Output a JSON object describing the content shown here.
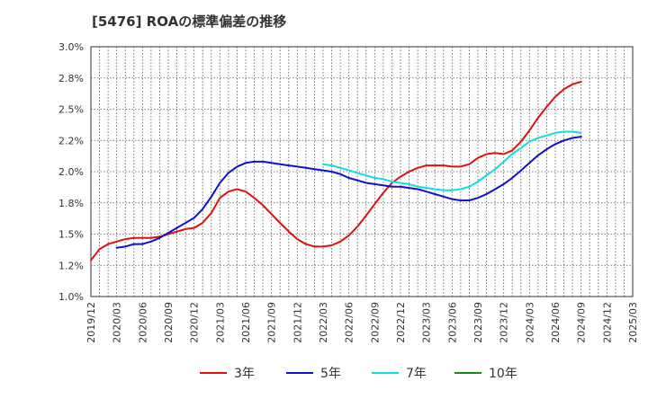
{
  "chart_data": {
    "type": "line",
    "title": "[5476]  ROAの標準偏差の推移",
    "xlabel": "",
    "ylabel": "",
    "x": [
      "2019/12",
      "2020/03",
      "2020/06",
      "2020/09",
      "2020/12",
      "2021/03",
      "2021/06",
      "2021/09",
      "2021/12",
      "2022/03",
      "2022/06",
      "2022/09",
      "2022/12",
      "2023/03",
      "2023/06",
      "2023/09",
      "2023/12",
      "2024/03",
      "2024/06",
      "2024/09",
      "2024/12",
      "2025/03"
    ],
    "ylim": [
      1.0,
      3.0
    ],
    "yticks": [
      1.0,
      1.25,
      1.5,
      1.75,
      2.0,
      2.25,
      2.5,
      2.75,
      3.0
    ],
    "ytick_labels": [
      "1.0%",
      "1.2%",
      "1.5%",
      "1.8%",
      "2.0%",
      "2.2%",
      "2.5%",
      "2.8%",
      "3.0%"
    ],
    "grid": true,
    "legend_position": "bottom",
    "series": [
      {
        "name": "3年",
        "color": "#dd1111",
        "points": [
          [
            0,
            1.29
          ],
          [
            0.33,
            1.38
          ],
          [
            0.67,
            1.42
          ],
          [
            1,
            1.44
          ],
          [
            1.33,
            1.46
          ],
          [
            1.67,
            1.47
          ],
          [
            2,
            1.47
          ],
          [
            2.33,
            1.47
          ],
          [
            2.67,
            1.48
          ],
          [
            3,
            1.5
          ],
          [
            3.33,
            1.52
          ],
          [
            3.67,
            1.54
          ],
          [
            4,
            1.55
          ],
          [
            4.33,
            1.59
          ],
          [
            4.67,
            1.67
          ],
          [
            5,
            1.79
          ],
          [
            5.33,
            1.84
          ],
          [
            5.67,
            1.86
          ],
          [
            6,
            1.84
          ],
          [
            6.33,
            1.79
          ],
          [
            6.67,
            1.73
          ],
          [
            7,
            1.66
          ],
          [
            7.33,
            1.59
          ],
          [
            7.67,
            1.52
          ],
          [
            8,
            1.46
          ],
          [
            8.33,
            1.42
          ],
          [
            8.67,
            1.4
          ],
          [
            9,
            1.4
          ],
          [
            9.33,
            1.41
          ],
          [
            9.67,
            1.44
          ],
          [
            10,
            1.49
          ],
          [
            10.33,
            1.56
          ],
          [
            10.67,
            1.65
          ],
          [
            11,
            1.74
          ],
          [
            11.33,
            1.83
          ],
          [
            11.67,
            1.91
          ],
          [
            12,
            1.96
          ],
          [
            12.33,
            2.0
          ],
          [
            12.67,
            2.03
          ],
          [
            13,
            2.05
          ],
          [
            13.33,
            2.05
          ],
          [
            13.67,
            2.05
          ],
          [
            14,
            2.04
          ],
          [
            14.33,
            2.04
          ],
          [
            14.67,
            2.06
          ],
          [
            15,
            2.11
          ],
          [
            15.33,
            2.14
          ],
          [
            15.67,
            2.15
          ],
          [
            16,
            2.14
          ],
          [
            16.33,
            2.17
          ],
          [
            16.67,
            2.24
          ],
          [
            17,
            2.33
          ],
          [
            17.33,
            2.43
          ],
          [
            17.67,
            2.52
          ],
          [
            18,
            2.6
          ],
          [
            18.33,
            2.66
          ],
          [
            18.67,
            2.7
          ],
          [
            19,
            2.72
          ]
        ]
      },
      {
        "name": "5年",
        "color": "#1111cc",
        "points": [
          [
            1,
            1.39
          ],
          [
            1.33,
            1.4
          ],
          [
            1.67,
            1.42
          ],
          [
            2,
            1.42
          ],
          [
            2.33,
            1.44
          ],
          [
            2.67,
            1.47
          ],
          [
            3,
            1.51
          ],
          [
            3.33,
            1.55
          ],
          [
            3.67,
            1.59
          ],
          [
            4,
            1.63
          ],
          [
            4.33,
            1.7
          ],
          [
            4.67,
            1.8
          ],
          [
            5,
            1.91
          ],
          [
            5.33,
            1.99
          ],
          [
            5.67,
            2.04
          ],
          [
            6,
            2.07
          ],
          [
            6.33,
            2.08
          ],
          [
            6.67,
            2.08
          ],
          [
            7,
            2.07
          ],
          [
            7.33,
            2.06
          ],
          [
            7.67,
            2.05
          ],
          [
            8,
            2.04
          ],
          [
            8.33,
            2.03
          ],
          [
            8.67,
            2.02
          ],
          [
            9,
            2.01
          ],
          [
            9.33,
            2.0
          ],
          [
            9.67,
            1.98
          ],
          [
            10,
            1.95
          ],
          [
            10.33,
            1.93
          ],
          [
            10.67,
            1.91
          ],
          [
            11,
            1.9
          ],
          [
            11.33,
            1.89
          ],
          [
            11.67,
            1.88
          ],
          [
            12,
            1.88
          ],
          [
            12.33,
            1.87
          ],
          [
            12.67,
            1.86
          ],
          [
            13,
            1.84
          ],
          [
            13.33,
            1.82
          ],
          [
            13.67,
            1.8
          ],
          [
            14,
            1.78
          ],
          [
            14.33,
            1.77
          ],
          [
            14.67,
            1.77
          ],
          [
            15,
            1.79
          ],
          [
            15.33,
            1.82
          ],
          [
            15.67,
            1.86
          ],
          [
            16,
            1.9
          ],
          [
            16.33,
            1.95
          ],
          [
            16.67,
            2.01
          ],
          [
            17,
            2.07
          ],
          [
            17.33,
            2.13
          ],
          [
            17.67,
            2.18
          ],
          [
            18,
            2.22
          ],
          [
            18.33,
            2.25
          ],
          [
            18.67,
            2.27
          ],
          [
            19,
            2.28
          ]
        ]
      },
      {
        "name": "7年",
        "color": "#11dddd",
        "points": [
          [
            9,
            2.06
          ],
          [
            9.33,
            2.05
          ],
          [
            9.67,
            2.03
          ],
          [
            10,
            2.01
          ],
          [
            10.33,
            1.99
          ],
          [
            10.67,
            1.97
          ],
          [
            11,
            1.95
          ],
          [
            11.33,
            1.94
          ],
          [
            11.67,
            1.92
          ],
          [
            12,
            1.91
          ],
          [
            12.33,
            1.9
          ],
          [
            12.67,
            1.88
          ],
          [
            13,
            1.87
          ],
          [
            13.33,
            1.86
          ],
          [
            13.67,
            1.85
          ],
          [
            14,
            1.85
          ],
          [
            14.33,
            1.86
          ],
          [
            14.67,
            1.88
          ],
          [
            15,
            1.92
          ],
          [
            15.33,
            1.97
          ],
          [
            15.67,
            2.02
          ],
          [
            16,
            2.08
          ],
          [
            16.33,
            2.14
          ],
          [
            16.67,
            2.19
          ],
          [
            17,
            2.24
          ],
          [
            17.33,
            2.27
          ],
          [
            17.67,
            2.29
          ],
          [
            18,
            2.31
          ],
          [
            18.33,
            2.32
          ],
          [
            18.67,
            2.32
          ],
          [
            19,
            2.31
          ]
        ]
      },
      {
        "name": "10年",
        "color": "#118811",
        "points": []
      }
    ]
  }
}
